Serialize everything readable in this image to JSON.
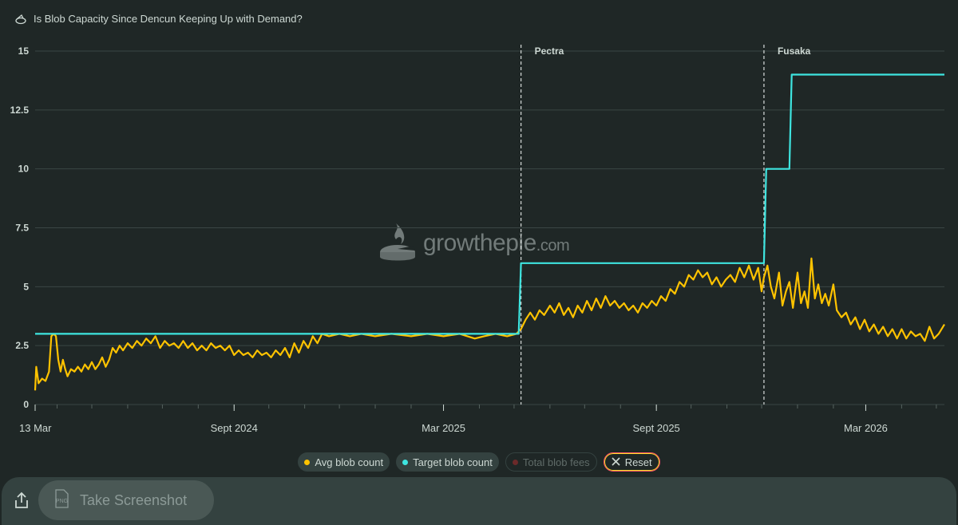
{
  "header": {
    "title": "Is Blob Capacity Since Dencun Keeping Up with Demand?",
    "icon": "pie-chart-icon"
  },
  "watermark": {
    "brand": "growthepie",
    "suffix": ".com"
  },
  "chart_data": {
    "type": "line",
    "title": "Is Blob Capacity Since Dencun Keeping Up with Demand?",
    "x_range": [
      "2024-03-13",
      "2026-05-08"
    ],
    "ylim": [
      0,
      15
    ],
    "y_ticks": [
      "0",
      "2.5",
      "5",
      "7.5",
      "10",
      "12.5",
      "15"
    ],
    "x_ticks": [
      {
        "date": "2024-03-13",
        "label": "13 Mar"
      },
      {
        "date": "2024-09-01",
        "label": "Sept 2024"
      },
      {
        "date": "2025-03-01",
        "label": "Mar 2025"
      },
      {
        "date": "2025-09-01",
        "label": "Sept 2025"
      },
      {
        "date": "2026-03-01",
        "label": "Mar 2026"
      }
    ],
    "annotations": [
      {
        "date": "2025-05-07",
        "label": "Pectra"
      },
      {
        "date": "2025-12-03",
        "label": "Fusaka"
      }
    ],
    "grid": true,
    "series": [
      {
        "name": "Avg blob count",
        "color": "#ffc300",
        "points": [
          [
            "2024-03-13",
            0.6
          ],
          [
            "2024-03-14",
            1.6
          ],
          [
            "2024-03-16",
            0.9
          ],
          [
            "2024-03-19",
            1.1
          ],
          [
            "2024-03-22",
            1.0
          ],
          [
            "2024-03-25",
            1.4
          ],
          [
            "2024-03-27",
            2.9
          ],
          [
            "2024-03-29",
            3.0
          ],
          [
            "2024-03-31",
            2.9
          ],
          [
            "2024-04-02",
            1.9
          ],
          [
            "2024-04-04",
            1.4
          ],
          [
            "2024-04-06",
            1.9
          ],
          [
            "2024-04-08",
            1.5
          ],
          [
            "2024-04-10",
            1.2
          ],
          [
            "2024-04-13",
            1.5
          ],
          [
            "2024-04-16",
            1.4
          ],
          [
            "2024-04-19",
            1.6
          ],
          [
            "2024-04-22",
            1.4
          ],
          [
            "2024-04-25",
            1.7
          ],
          [
            "2024-04-28",
            1.5
          ],
          [
            "2024-05-01",
            1.8
          ],
          [
            "2024-05-04",
            1.5
          ],
          [
            "2024-05-07",
            1.7
          ],
          [
            "2024-05-10",
            2.0
          ],
          [
            "2024-05-13",
            1.6
          ],
          [
            "2024-05-16",
            1.9
          ],
          [
            "2024-05-19",
            2.4
          ],
          [
            "2024-05-22",
            2.2
          ],
          [
            "2024-05-25",
            2.5
          ],
          [
            "2024-05-28",
            2.3
          ],
          [
            "2024-06-01",
            2.6
          ],
          [
            "2024-06-05",
            2.4
          ],
          [
            "2024-06-09",
            2.7
          ],
          [
            "2024-06-13",
            2.5
          ],
          [
            "2024-06-17",
            2.8
          ],
          [
            "2024-06-21",
            2.6
          ],
          [
            "2024-06-25",
            2.9
          ],
          [
            "2024-06-29",
            2.4
          ],
          [
            "2024-07-03",
            2.7
          ],
          [
            "2024-07-07",
            2.5
          ],
          [
            "2024-07-11",
            2.6
          ],
          [
            "2024-07-15",
            2.4
          ],
          [
            "2024-07-19",
            2.7
          ],
          [
            "2024-07-23",
            2.4
          ],
          [
            "2024-07-27",
            2.6
          ],
          [
            "2024-07-31",
            2.3
          ],
          [
            "2024-08-04",
            2.5
          ],
          [
            "2024-08-08",
            2.3
          ],
          [
            "2024-08-12",
            2.6
          ],
          [
            "2024-08-16",
            2.4
          ],
          [
            "2024-08-20",
            2.5
          ],
          [
            "2024-08-24",
            2.3
          ],
          [
            "2024-08-28",
            2.5
          ],
          [
            "2024-09-01",
            2.1
          ],
          [
            "2024-09-05",
            2.3
          ],
          [
            "2024-09-09",
            2.1
          ],
          [
            "2024-09-13",
            2.2
          ],
          [
            "2024-09-17",
            2.0
          ],
          [
            "2024-09-21",
            2.3
          ],
          [
            "2024-09-25",
            2.1
          ],
          [
            "2024-09-29",
            2.2
          ],
          [
            "2024-10-03",
            2.0
          ],
          [
            "2024-10-07",
            2.3
          ],
          [
            "2024-10-11",
            2.1
          ],
          [
            "2024-10-15",
            2.4
          ],
          [
            "2024-10-19",
            2.0
          ],
          [
            "2024-10-23",
            2.6
          ],
          [
            "2024-10-27",
            2.2
          ],
          [
            "2024-10-31",
            2.7
          ],
          [
            "2024-11-04",
            2.4
          ],
          [
            "2024-11-08",
            2.9
          ],
          [
            "2024-11-12",
            2.6
          ],
          [
            "2024-11-16",
            3.0
          ],
          [
            "2024-11-22",
            2.9
          ],
          [
            "2024-12-01",
            3.0
          ],
          [
            "2024-12-10",
            2.9
          ],
          [
            "2024-12-20",
            3.0
          ],
          [
            "2025-01-01",
            2.9
          ],
          [
            "2025-01-15",
            3.0
          ],
          [
            "2025-02-01",
            2.9
          ],
          [
            "2025-02-15",
            3.0
          ],
          [
            "2025-03-01",
            2.9
          ],
          [
            "2025-03-15",
            3.0
          ],
          [
            "2025-03-28",
            2.8
          ],
          [
            "2025-04-05",
            2.9
          ],
          [
            "2025-04-15",
            3.0
          ],
          [
            "2025-04-25",
            2.9
          ],
          [
            "2025-05-03",
            3.0
          ],
          [
            "2025-05-07",
            3.2
          ],
          [
            "2025-05-11",
            3.6
          ],
          [
            "2025-05-15",
            3.9
          ],
          [
            "2025-05-19",
            3.6
          ],
          [
            "2025-05-23",
            4.0
          ],
          [
            "2025-05-27",
            3.8
          ],
          [
            "2025-06-01",
            4.2
          ],
          [
            "2025-06-05",
            3.9
          ],
          [
            "2025-06-09",
            4.3
          ],
          [
            "2025-06-13",
            3.8
          ],
          [
            "2025-06-17",
            4.1
          ],
          [
            "2025-06-21",
            3.7
          ],
          [
            "2025-06-25",
            4.2
          ],
          [
            "2025-06-29",
            3.9
          ],
          [
            "2025-07-03",
            4.4
          ],
          [
            "2025-07-07",
            4.0
          ],
          [
            "2025-07-11",
            4.5
          ],
          [
            "2025-07-15",
            4.1
          ],
          [
            "2025-07-19",
            4.6
          ],
          [
            "2025-07-23",
            4.2
          ],
          [
            "2025-07-27",
            4.4
          ],
          [
            "2025-07-31",
            4.1
          ],
          [
            "2025-08-04",
            4.3
          ],
          [
            "2025-08-08",
            4.0
          ],
          [
            "2025-08-12",
            4.2
          ],
          [
            "2025-08-16",
            3.9
          ],
          [
            "2025-08-20",
            4.3
          ],
          [
            "2025-08-24",
            4.1
          ],
          [
            "2025-08-28",
            4.4
          ],
          [
            "2025-09-01",
            4.2
          ],
          [
            "2025-09-05",
            4.6
          ],
          [
            "2025-09-09",
            4.4
          ],
          [
            "2025-09-13",
            4.9
          ],
          [
            "2025-09-17",
            4.7
          ],
          [
            "2025-09-21",
            5.2
          ],
          [
            "2025-09-25",
            5.0
          ],
          [
            "2025-09-29",
            5.5
          ],
          [
            "2025-10-03",
            5.3
          ],
          [
            "2025-10-07",
            5.7
          ],
          [
            "2025-10-11",
            5.4
          ],
          [
            "2025-10-15",
            5.6
          ],
          [
            "2025-10-19",
            5.1
          ],
          [
            "2025-10-23",
            5.4
          ],
          [
            "2025-10-27",
            5.0
          ],
          [
            "2025-10-31",
            5.3
          ],
          [
            "2025-11-04",
            5.5
          ],
          [
            "2025-11-08",
            5.2
          ],
          [
            "2025-11-12",
            5.8
          ],
          [
            "2025-11-16",
            5.4
          ],
          [
            "2025-11-20",
            5.9
          ],
          [
            "2025-11-24",
            5.3
          ],
          [
            "2025-11-28",
            5.8
          ],
          [
            "2025-12-01",
            4.8
          ],
          [
            "2025-12-03",
            5.4
          ],
          [
            "2025-12-06",
            5.9
          ],
          [
            "2025-12-09",
            5.0
          ],
          [
            "2025-12-12",
            4.5
          ],
          [
            "2025-12-16",
            5.6
          ],
          [
            "2025-12-19",
            4.2
          ],
          [
            "2025-12-22",
            4.8
          ],
          [
            "2025-12-25",
            5.2
          ],
          [
            "2025-12-28",
            4.1
          ],
          [
            "2026-01-01",
            5.6
          ],
          [
            "2026-01-04",
            4.3
          ],
          [
            "2026-01-07",
            4.8
          ],
          [
            "2026-01-10",
            4.1
          ],
          [
            "2026-01-13",
            6.2
          ],
          [
            "2026-01-16",
            4.5
          ],
          [
            "2026-01-19",
            5.1
          ],
          [
            "2026-01-22",
            4.3
          ],
          [
            "2026-01-25",
            4.7
          ],
          [
            "2026-01-28",
            4.2
          ],
          [
            "2026-02-01",
            5.1
          ],
          [
            "2026-02-04",
            4.0
          ],
          [
            "2026-02-08",
            3.7
          ],
          [
            "2026-02-12",
            3.9
          ],
          [
            "2026-02-16",
            3.4
          ],
          [
            "2026-02-20",
            3.7
          ],
          [
            "2026-02-24",
            3.2
          ],
          [
            "2026-02-28",
            3.6
          ],
          [
            "2026-03-04",
            3.1
          ],
          [
            "2026-03-08",
            3.4
          ],
          [
            "2026-03-12",
            3.0
          ],
          [
            "2026-03-16",
            3.3
          ],
          [
            "2026-03-20",
            2.9
          ],
          [
            "2026-03-24",
            3.2
          ],
          [
            "2026-03-28",
            2.8
          ],
          [
            "2026-04-01",
            3.2
          ],
          [
            "2026-04-05",
            2.8
          ],
          [
            "2026-04-09",
            3.1
          ],
          [
            "2026-04-13",
            2.9
          ],
          [
            "2026-04-17",
            3.0
          ],
          [
            "2026-04-21",
            2.7
          ],
          [
            "2026-04-25",
            3.3
          ],
          [
            "2026-04-29",
            2.8
          ],
          [
            "2026-05-03",
            3.0
          ],
          [
            "2026-05-08",
            3.4
          ]
        ]
      },
      {
        "name": "Target blob count",
        "color": "#3ee5e0",
        "points": [
          [
            "2024-03-13",
            3
          ],
          [
            "2025-05-05",
            3
          ],
          [
            "2025-05-07",
            6
          ],
          [
            "2025-12-03",
            6
          ],
          [
            "2025-12-05",
            10
          ],
          [
            "2025-12-25",
            10
          ],
          [
            "2025-12-27",
            14
          ],
          [
            "2026-05-08",
            14
          ]
        ]
      }
    ]
  },
  "legend": [
    {
      "name": "Avg blob count",
      "color": "#ffc300",
      "active": true
    },
    {
      "name": "Target blob count",
      "color": "#3ee5e0",
      "active": true
    },
    {
      "name": "Total blob fees",
      "color": "#8b2b2b",
      "active": false
    }
  ],
  "reset_label": "Reset",
  "screenshot": {
    "label": "Take Screenshot",
    "badge": "PNG"
  }
}
